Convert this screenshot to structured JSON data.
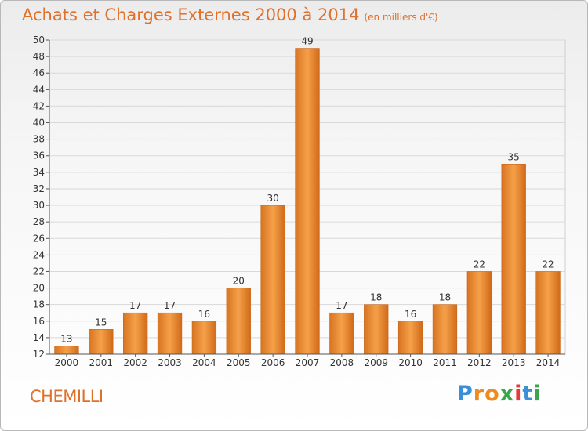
{
  "chart_data": {
    "type": "bar",
    "title": "Achats et Charges Externes 2000 à 2014",
    "subtitle": "(en milliers d'€)",
    "categories": [
      "2000",
      "2001",
      "2002",
      "2003",
      "2004",
      "2005",
      "2006",
      "2007",
      "2008",
      "2009",
      "2010",
      "2011",
      "2012",
      "2013",
      "2014"
    ],
    "values": [
      13,
      15,
      17,
      17,
      16,
      20,
      30,
      49,
      17,
      18,
      16,
      18,
      22,
      35,
      22
    ],
    "ylim": [
      12,
      50
    ],
    "yticks": [
      12,
      14,
      16,
      18,
      20,
      22,
      24,
      26,
      28,
      30,
      32,
      34,
      36,
      38,
      40,
      42,
      44,
      46,
      48,
      50
    ],
    "grid": true,
    "bar_color": "#f0923a"
  },
  "commune": "CHEMILLI",
  "brand": {
    "letters": [
      "P",
      "r",
      "o",
      "x",
      "i",
      "t",
      "i"
    ],
    "colors": [
      "#3b8fd6",
      "#f08a1c",
      "#f08a1c",
      "#3aa64a",
      "#e23b3b",
      "#3b8fd6",
      "#3aa64a"
    ]
  }
}
